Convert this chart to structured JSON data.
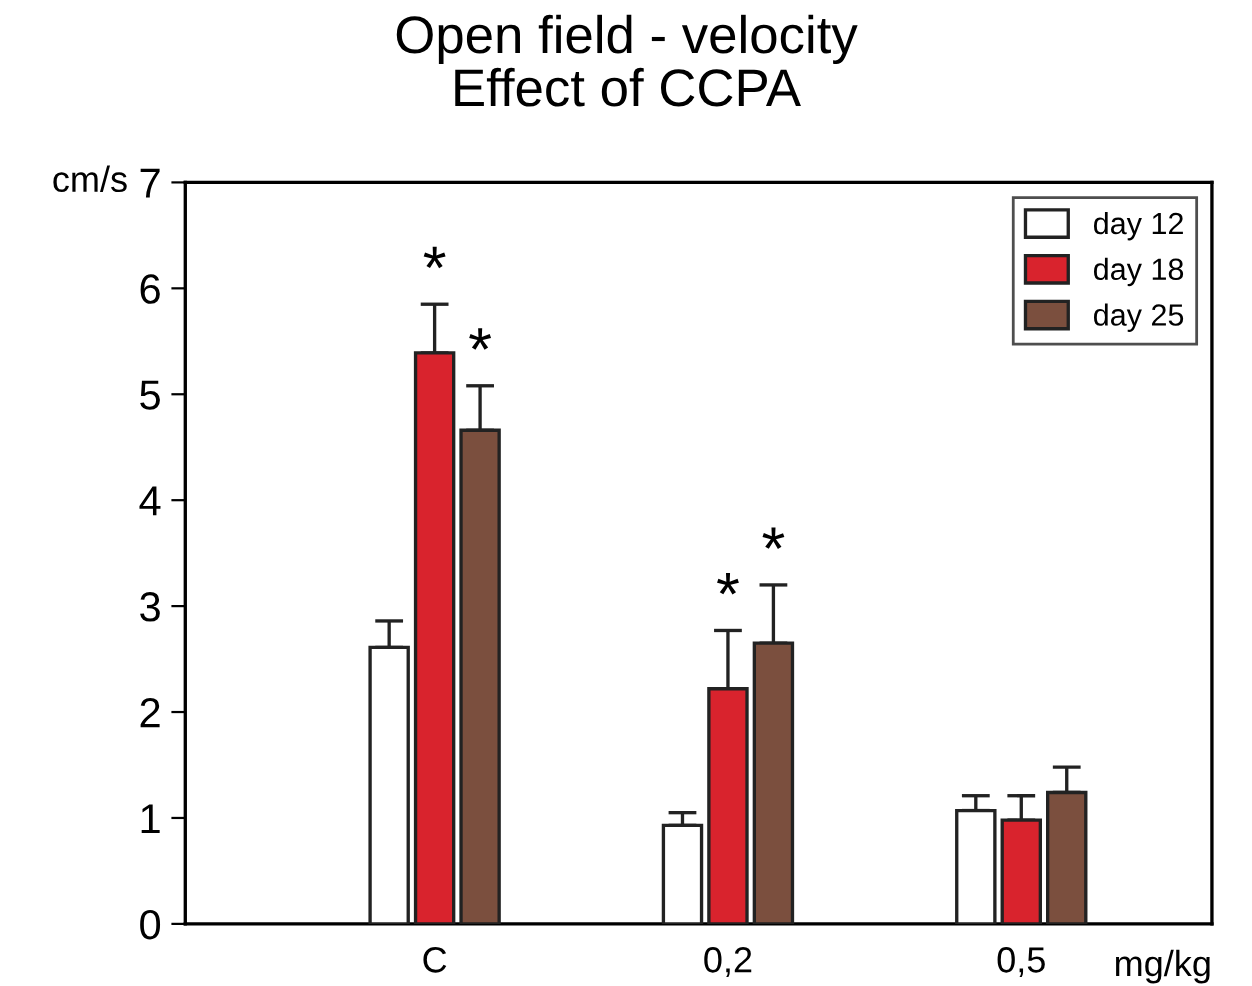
{
  "chart_data": {
    "type": "bar",
    "title": "Open field - velocity\nEffect of CCPA",
    "ylabel": "cm/s",
    "xlabel": "mg/kg",
    "categories": [
      "C",
      "0,2",
      "0,5"
    ],
    "series": [
      {
        "name": "day 12",
        "color": "#ffffff",
        "values": [
          2.61,
          0.93,
          1.07
        ],
        "errors": [
          [
            2.61,
            2.86
          ],
          [
            0.93,
            1.05
          ],
          [
            1.07,
            1.21
          ]
        ]
      },
      {
        "name": "day 18",
        "color": "#d9232d",
        "values": [
          5.39,
          2.22,
          0.98
        ],
        "errors": [
          [
            5.39,
            5.85
          ],
          [
            2.22,
            2.77
          ],
          [
            0.98,
            1.21
          ]
        ]
      },
      {
        "name": "day 25",
        "color": "#7b4f3e",
        "values": [
          4.66,
          2.65,
          1.24
        ],
        "errors": [
          [
            4.66,
            5.08
          ],
          [
            2.65,
            3.2
          ],
          [
            1.24,
            1.48
          ]
        ]
      }
    ],
    "annotations": [
      "*",
      "*",
      "*",
      "*"
    ],
    "ylim": [
      0,
      7
    ],
    "yticks": [
      0,
      1,
      2,
      3,
      4,
      5,
      6,
      7
    ],
    "grid": false,
    "legend": "top right"
  }
}
